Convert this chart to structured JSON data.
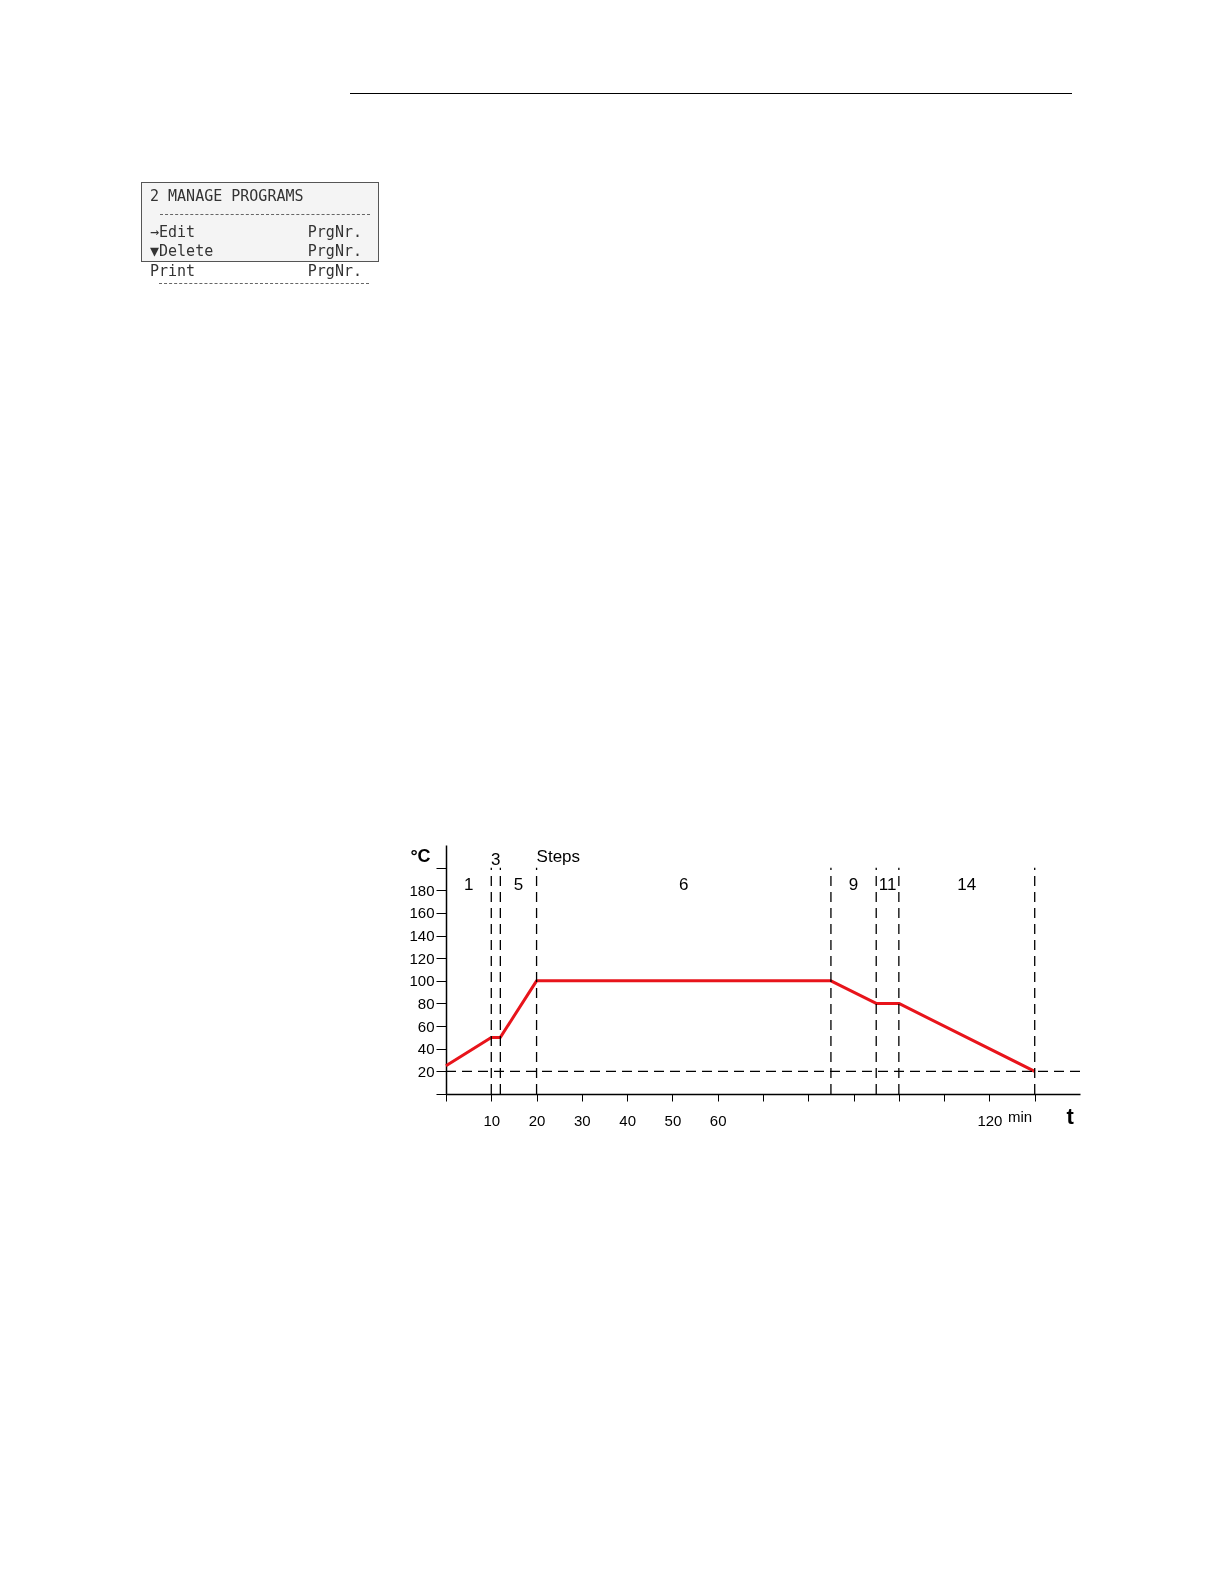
{
  "chart_data": [
    {
      "type": "other",
      "title": "2 MANAGE PROGRAMS",
      "annotations": [
        "→Edit",
        "PrgNr.",
        "▼Delete",
        "PrgNr.",
        "Print",
        "PrgNr."
      ]
    },
    {
      "type": "line",
      "xlabel": "t",
      "ylabel": "°C",
      "x": [
        0,
        10,
        12,
        20,
        85,
        95,
        100,
        130
      ],
      "series": [
        {
          "color": "#e8141b",
          "values": [
            25,
            50,
            50,
            100,
            100,
            80,
            80,
            20
          ]
        }
      ],
      "xlim": [
        0,
        140
      ],
      "ylim": [
        0,
        220
      ],
      "xticks": [
        {
          "value": 0,
          "label": null
        },
        10,
        20,
        30,
        40,
        50,
        60,
        {
          "value": 70,
          "label": null
        },
        {
          "value": 80,
          "label": null
        },
        {
          "value": 90,
          "label": null
        },
        {
          "value": 100,
          "label": null
        },
        {
          "value": 110,
          "label": null
        },
        120,
        {
          "value": 130,
          "label": null
        }
      ],
      "yticks": [
        {
          "value": 0,
          "label": null
        },
        20,
        40,
        60,
        80,
        100,
        120,
        140,
        160,
        180,
        {
          "value": 200,
          "label": null
        }
      ],
      "ref_lines": [
        {
          "axis": "y",
          "value": 20,
          "label": null,
          "color": "#000000",
          "line_style": "dashed"
        },
        {
          "axis": "x",
          "value": 10,
          "label": null,
          "color": "#000000",
          "line_style": "dashed"
        },
        {
          "axis": "x",
          "value": 12,
          "label": null,
          "color": "#000000",
          "line_style": "dashed"
        },
        {
          "axis": "x",
          "value": 20,
          "label": null,
          "color": "#000000",
          "line_style": "dashed"
        },
        {
          "axis": "x",
          "value": 85,
          "label": null,
          "color": "#000000",
          "line_style": "dashed"
        },
        {
          "axis": "x",
          "value": 95,
          "label": null,
          "color": "#000000",
          "line_style": "dashed"
        },
        {
          "axis": "x",
          "value": 100,
          "label": null,
          "color": "#000000",
          "line_style": "dashed"
        },
        {
          "axis": "x",
          "value": 130,
          "label": null,
          "color": "#000000",
          "line_style": "dashed"
        }
      ],
      "annotations": [
        "Steps",
        "1",
        "3",
        "5",
        "6",
        "9",
        "11",
        "14",
        "min"
      ],
      "grid": false,
      "marker": "none",
      "line_style": "solid"
    }
  ]
}
